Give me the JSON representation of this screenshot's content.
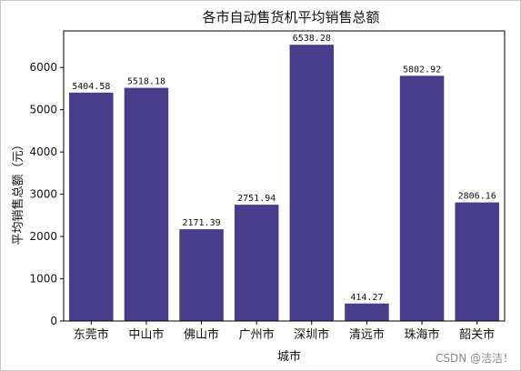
{
  "chart_data": {
    "type": "bar",
    "title": "各市自动售货机平均销售总额",
    "xlabel": "城市",
    "ylabel": "平均销售总额（元）",
    "categories": [
      "东莞市",
      "中山市",
      "佛山市",
      "广州市",
      "深圳市",
      "清远市",
      "珠海市",
      "韶关市"
    ],
    "values": [
      5404.58,
      5518.18,
      2171.39,
      2751.94,
      6538.28,
      414.27,
      5802.92,
      2806.16
    ],
    "data_labels": [
      "5404.58",
      "5518.18",
      "2171.39",
      "2751.94",
      "6538.28",
      "414.27",
      "5802.92",
      "2806.16"
    ],
    "yticks": [
      0,
      1000,
      2000,
      3000,
      4000,
      5000,
      6000
    ],
    "ylim": [
      0,
      6865
    ],
    "bar_color": "#483d8b",
    "grid": false,
    "legend": "none"
  },
  "watermark": "CSDN @洁洁！"
}
